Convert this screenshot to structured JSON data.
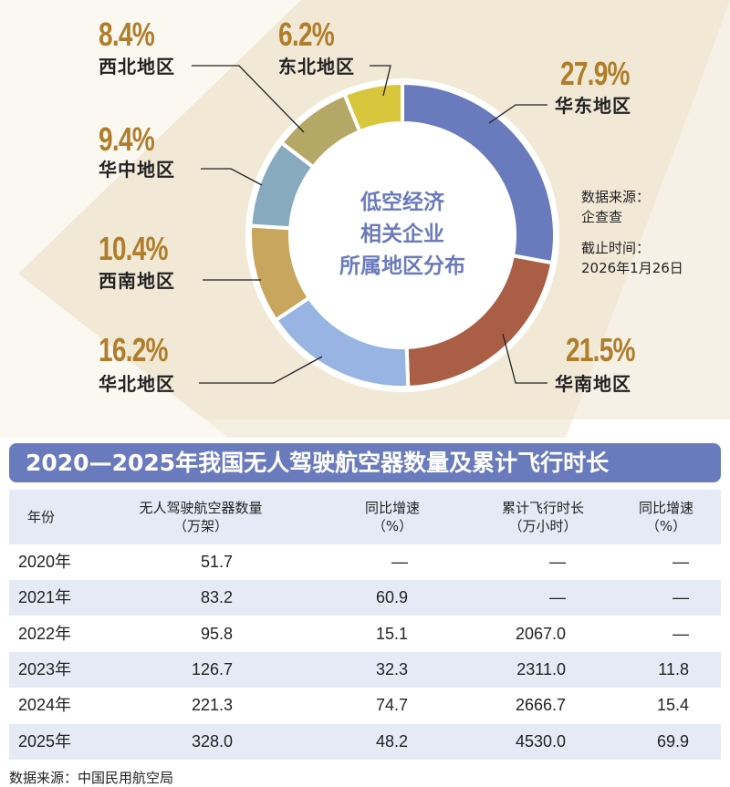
{
  "chart_data": {
    "type": "pie",
    "title": "低空经济相关企业所属地区分布",
    "title_lines": [
      "低空经济",
      "相关企业",
      "所属地区分布"
    ],
    "slices": [
      {
        "label": "华东地区",
        "value": 27.9,
        "text": "27.9%",
        "color": "#6a7bbd"
      },
      {
        "label": "华南地区",
        "value": 21.5,
        "text": "21.5%",
        "color": "#a95e45"
      },
      {
        "label": "华北地区",
        "value": 16.2,
        "text": "16.2%",
        "color": "#97b4e2"
      },
      {
        "label": "西南地区",
        "value": 10.4,
        "text": "10.4%",
        "color": "#c9a65d"
      },
      {
        "label": "华中地区",
        "value": 9.4,
        "text": "9.4%",
        "color": "#87aabf"
      },
      {
        "label": "西北地区",
        "value": 8.4,
        "text": "8.4%",
        "color": "#b5a766"
      },
      {
        "label": "东北地区",
        "value": 6.2,
        "text": "6.2%",
        "color": "#d8c63c"
      }
    ],
    "donut": true,
    "source_label": "数据来源：",
    "source": "企查查",
    "cutoff_label": "截止时间：",
    "cutoff": "2026年1月26日"
  },
  "table": {
    "title": "2020—2025年我国无人驾驶航空器数量及累计飞行时长",
    "headers": [
      [
        "年份"
      ],
      [
        "无人驾驶航空器数量",
        "（万架）"
      ],
      [
        "同比增速",
        "（%）"
      ],
      [
        "累计飞行时长",
        "（万小时）"
      ],
      [
        "同比增速",
        "（%）"
      ]
    ],
    "rows": [
      [
        "2020年",
        "51.7",
        "—",
        "—",
        "—"
      ],
      [
        "2021年",
        "83.2",
        "60.9",
        "—",
        "—"
      ],
      [
        "2022年",
        "95.8",
        "15.1",
        "2067.0",
        "—"
      ],
      [
        "2023年",
        "126.7",
        "32.3",
        "2311.0",
        "11.8"
      ],
      [
        "2024年",
        "221.3",
        "74.7",
        "2666.7",
        "15.4"
      ],
      [
        "2025年",
        "328.0",
        "48.2",
        "4530.0",
        "69.9"
      ]
    ],
    "source": "数据来源：中国民用航空局",
    "accent": "#6a7bbd"
  }
}
